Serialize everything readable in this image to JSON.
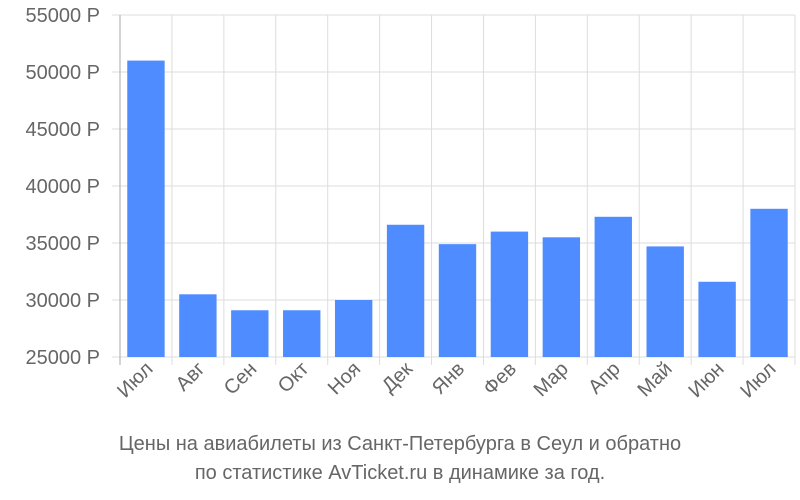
{
  "chart_data": {
    "type": "bar",
    "categories": [
      "Июл",
      "Авг",
      "Сен",
      "Окт",
      "Ноя",
      "Дек",
      "Янв",
      "Фев",
      "Мар",
      "Апр",
      "Май",
      "Июн",
      "Июл"
    ],
    "values": [
      51000,
      30500,
      29100,
      29100,
      30000,
      36600,
      34900,
      36000,
      35500,
      37300,
      34700,
      31600,
      38000
    ],
    "ylim": [
      25000,
      55000
    ],
    "yticks": [
      25000,
      30000,
      35000,
      40000,
      45000,
      50000,
      55000
    ],
    "ytick_labels": [
      "25000 Р",
      "30000 Р",
      "35000 Р",
      "40000 Р",
      "45000 Р",
      "50000 Р",
      "55000 Р"
    ],
    "grid": true,
    "bar_color": "#4f8cff",
    "caption_line1": "Цены на авиабилеты из Санкт-Петербурга в Сеул и обратно",
    "caption_line2": "по статистике AvTicket.ru в динамике за год."
  }
}
